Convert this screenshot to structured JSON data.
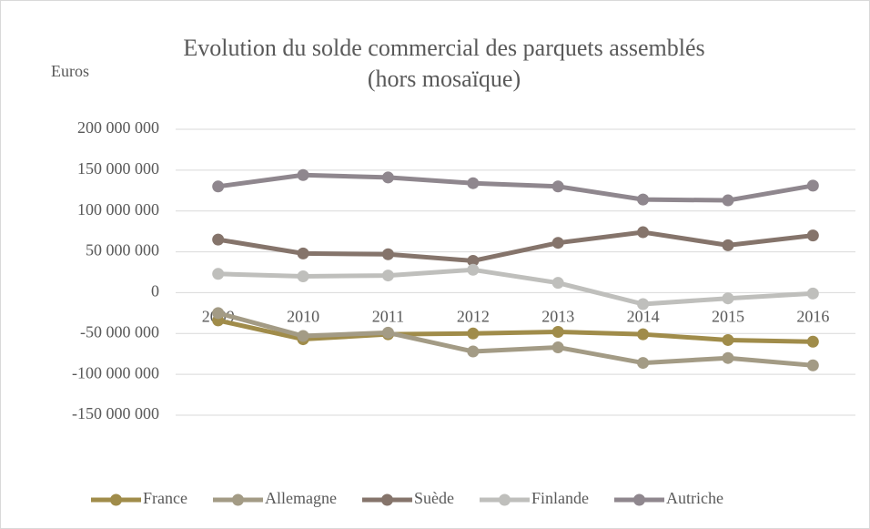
{
  "chart_data": {
    "type": "line",
    "title": [
      "Evolution du solde commercial des parquets assemblés",
      "(hors mosaïque)"
    ],
    "y_label": "Euros",
    "categories": [
      "2009",
      "2010",
      "2011",
      "2012",
      "2013",
      "2014",
      "2015",
      "2016"
    ],
    "series": [
      {
        "name": "France",
        "color": "#a08c4a",
        "values": [
          -34000000,
          -57000000,
          -51000000,
          -50000000,
          -48000000,
          -51000000,
          -58000000,
          -60000000
        ]
      },
      {
        "name": "Allemagne",
        "color": "#a39b85",
        "values": [
          -25000000,
          -53000000,
          -49000000,
          -72000000,
          -67000000,
          -86000000,
          -80000000,
          -89000000
        ]
      },
      {
        "name": "Suède",
        "color": "#85746b",
        "values": [
          65000000,
          48000000,
          47000000,
          39000000,
          61000000,
          74000000,
          58000000,
          70000000
        ]
      },
      {
        "name": "Finlande",
        "color": "#bfbfbc",
        "values": [
          23000000,
          20000000,
          21000000,
          28000000,
          12000000,
          -14000000,
          -7000000,
          -1000000
        ]
      },
      {
        "name": "Autriche",
        "color": "#8f878e",
        "values": [
          130000000,
          144000000,
          141000000,
          134000000,
          130000000,
          114000000,
          113000000,
          131000000
        ]
      }
    ],
    "ylim": [
      -150000000,
      200000000
    ],
    "yticks": [
      {
        "value": -150000000,
        "label": "-150 000 000"
      },
      {
        "value": -100000000,
        "label": "-100 000 000"
      },
      {
        "value": -50000000,
        "label": "-50 000 000"
      },
      0,
      {
        "value": 50000000,
        "label": "50 000 000"
      },
      {
        "value": 100000000,
        "label": "100 000 000"
      },
      {
        "value": 150000000,
        "label": "150 000 000"
      },
      {
        "value": 200000000,
        "label": "200 000 000"
      }
    ],
    "grid": true,
    "legend": "bottom"
  }
}
